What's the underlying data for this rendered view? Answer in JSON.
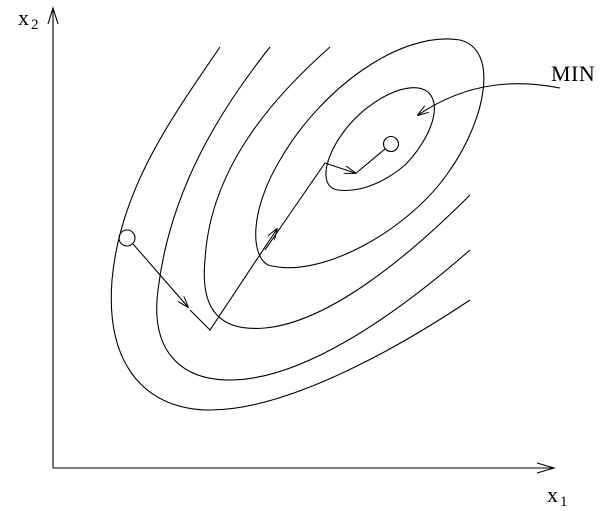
{
  "labels": {
    "y_axis": {
      "base": "x",
      "sub": "2"
    },
    "x_axis": {
      "base": "x",
      "sub": "1"
    },
    "minimum": "MIN"
  },
  "colors": {
    "ink": "#000000",
    "background": "#ffffff"
  },
  "contours": {
    "count": 5
  },
  "descent_path": {
    "steps": 4
  }
}
